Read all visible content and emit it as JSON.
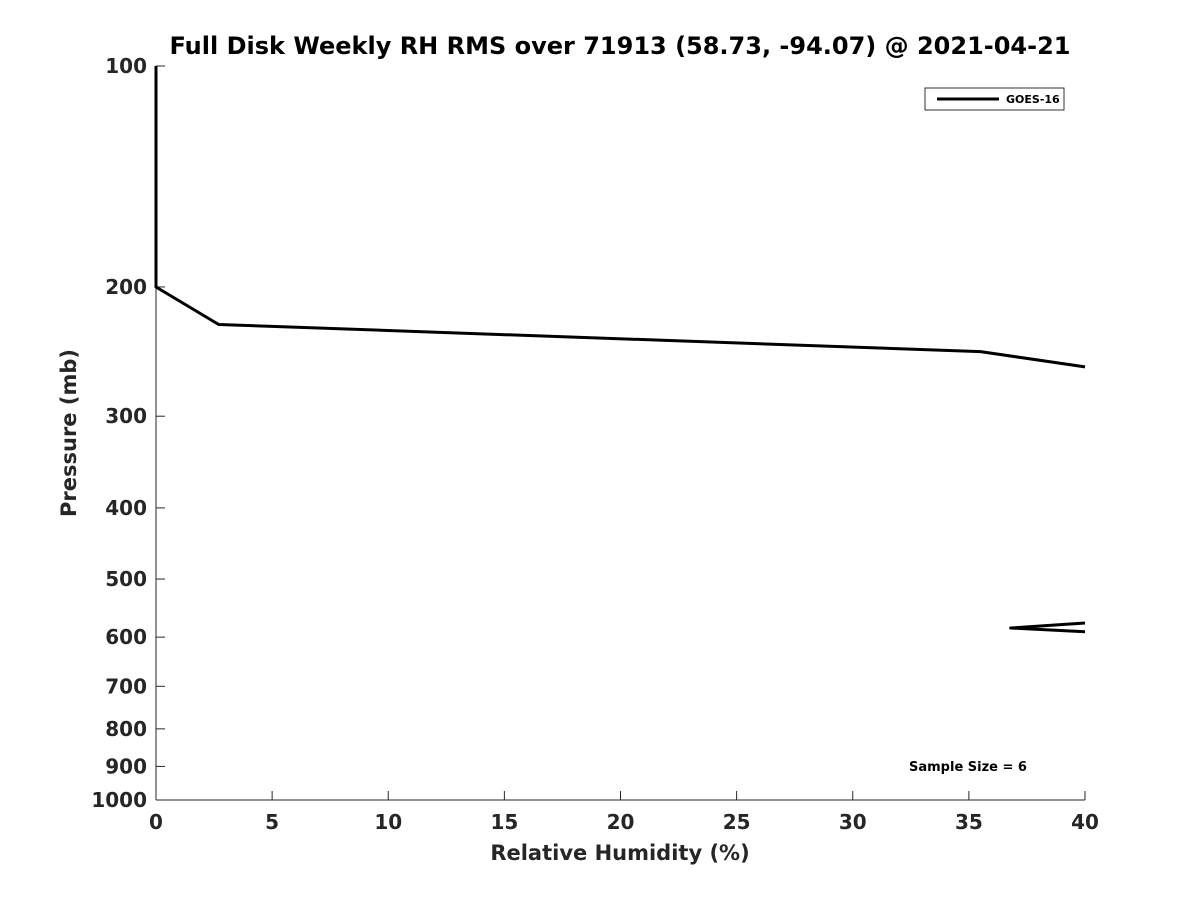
{
  "chart_data": {
    "type": "line",
    "title": "Full Disk Weekly RH RMS over 71913 (58.73, -94.07) @ 2021-04-21",
    "xlabel": "Relative Humidity (%)",
    "ylabel": "Pressure (mb)",
    "xlim": [
      0,
      40
    ],
    "ylim": [
      100,
      1000
    ],
    "y_scale": "log",
    "y_reversed": true,
    "grid": false,
    "legend_position": "top-right",
    "x_ticks": [
      0,
      5,
      10,
      15,
      20,
      25,
      30,
      35,
      40
    ],
    "x_tick_labels": [
      "0",
      "5",
      "10",
      "15",
      "20",
      "25",
      "30",
      "35",
      "40"
    ],
    "y_ticks": [
      100,
      200,
      300,
      400,
      500,
      600,
      700,
      800,
      900,
      1000
    ],
    "y_tick_labels": [
      "100",
      "200",
      "300",
      "400",
      "500",
      "600",
      "700",
      "800",
      "900",
      "1000"
    ],
    "series": [
      {
        "name": "GOES-16",
        "color": "#000000",
        "segments": [
          [
            {
              "x": 0.0,
              "y": 100
            },
            {
              "x": 0.0,
              "y": 150
            },
            {
              "x": 0.0,
              "y": 200
            },
            {
              "x": 2.7,
              "y": 225
            },
            {
              "x": 35.5,
              "y": 245
            },
            {
              "x": 40.0,
              "y": 257
            }
          ],
          [
            {
              "x": 40.0,
              "y": 574
            },
            {
              "x": 36.8,
              "y": 583
            },
            {
              "x": 40.0,
              "y": 590
            }
          ]
        ]
      }
    ],
    "annotations": [
      {
        "text": "Sample Size = 6",
        "position": "bottom-right"
      }
    ]
  }
}
